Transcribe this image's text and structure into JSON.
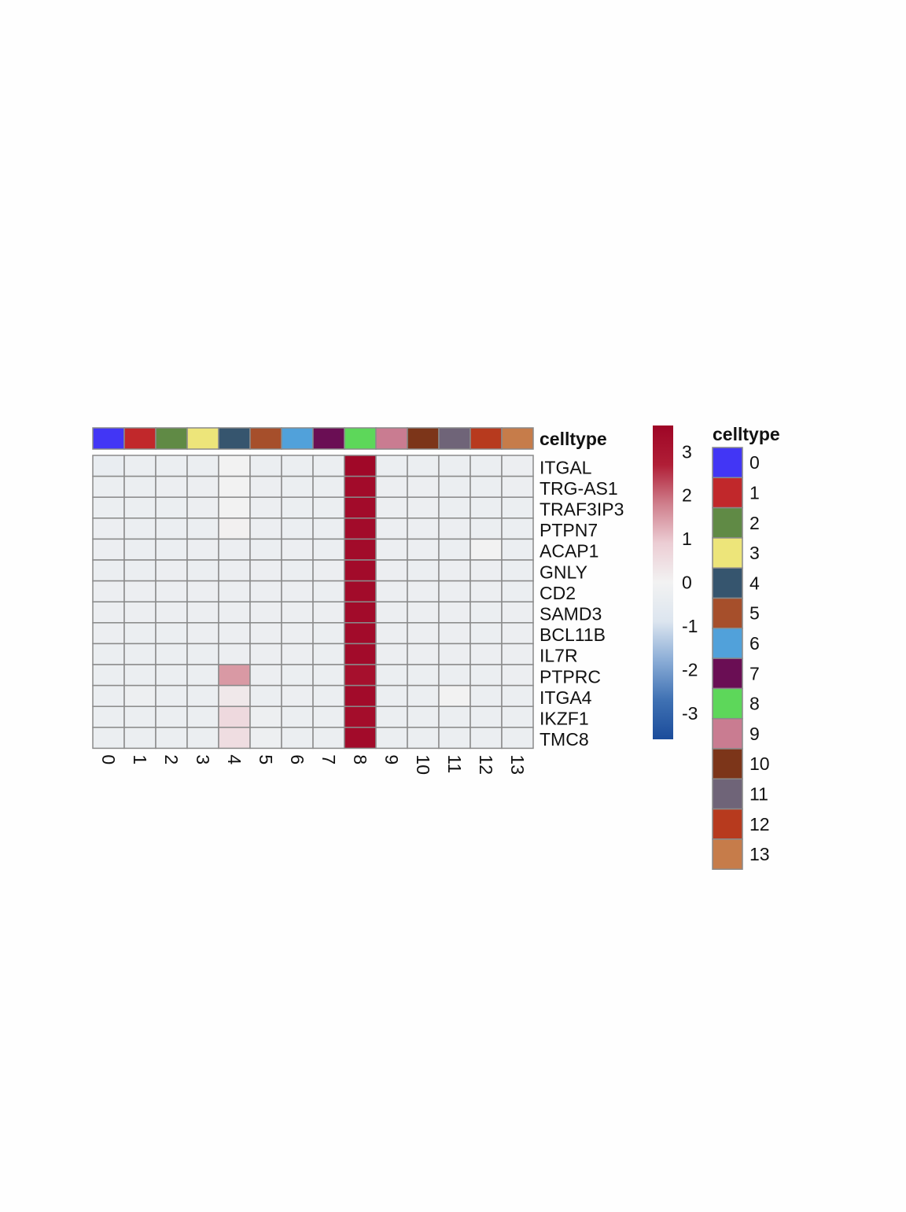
{
  "chart_data": {
    "type": "heatmap",
    "columns": [
      "0",
      "1",
      "2",
      "3",
      "4",
      "5",
      "6",
      "7",
      "8",
      "9",
      "10",
      "11",
      "12",
      "13"
    ],
    "rows": [
      "ITGAL",
      "TRG-AS1",
      "TRAF3IP3",
      "PTPN7",
      "ACAP1",
      "GNLY",
      "CD2",
      "SAMD3",
      "BCL11B",
      "IL7R",
      "PTPRC",
      "ITGA4",
      "IKZF1",
      "TMC8"
    ],
    "values": [
      [
        -0.35,
        -0.3,
        -0.3,
        -0.28,
        0.0,
        -0.3,
        -0.3,
        -0.3,
        3.5,
        -0.28,
        -0.28,
        -0.3,
        -0.28,
        -0.25
      ],
      [
        -0.3,
        -0.3,
        -0.25,
        -0.25,
        0.0,
        -0.25,
        -0.3,
        -0.3,
        3.4,
        -0.25,
        -0.25,
        -0.3,
        -0.3,
        -0.25
      ],
      [
        -0.3,
        -0.3,
        -0.3,
        -0.25,
        0.0,
        -0.25,
        -0.3,
        -0.3,
        3.4,
        -0.25,
        -0.25,
        -0.28,
        -0.28,
        -0.3
      ],
      [
        -0.25,
        -0.3,
        -0.3,
        -0.3,
        0.05,
        -0.25,
        -0.3,
        -0.3,
        3.4,
        -0.25,
        -0.25,
        -0.25,
        -0.3,
        -0.28
      ],
      [
        -0.25,
        -0.3,
        -0.3,
        -0.25,
        -0.25,
        -0.3,
        -0.25,
        -0.3,
        3.4,
        -0.25,
        -0.25,
        -0.3,
        0.0,
        -0.28
      ],
      [
        -0.3,
        -0.3,
        -0.25,
        -0.3,
        -0.25,
        -0.25,
        -0.3,
        -0.25,
        3.4,
        -0.25,
        -0.3,
        -0.25,
        -0.25,
        -0.28
      ],
      [
        -0.25,
        -0.25,
        -0.25,
        -0.25,
        -0.25,
        -0.25,
        -0.25,
        -0.3,
        3.4,
        -0.25,
        -0.25,
        -0.25,
        -0.25,
        -0.28
      ],
      [
        -0.25,
        -0.25,
        -0.25,
        -0.25,
        -0.25,
        -0.25,
        -0.25,
        -0.25,
        3.4,
        -0.25,
        -0.25,
        -0.25,
        -0.3,
        -0.25
      ],
      [
        -0.25,
        -0.3,
        -0.3,
        -0.25,
        -0.25,
        -0.25,
        -0.25,
        -0.3,
        3.4,
        -0.25,
        -0.25,
        -0.25,
        -0.3,
        -0.25
      ],
      [
        -0.3,
        -0.3,
        -0.3,
        -0.3,
        -0.25,
        -0.25,
        -0.25,
        -0.3,
        3.4,
        -0.25,
        -0.25,
        -0.25,
        -0.25,
        -0.25
      ],
      [
        -0.3,
        -0.3,
        -0.3,
        -0.3,
        1.5,
        -0.25,
        -0.3,
        -0.3,
        3.2,
        -0.3,
        -0.3,
        -0.3,
        -0.28,
        -0.25
      ],
      [
        -0.3,
        -0.2,
        -0.3,
        -0.3,
        0.25,
        -0.3,
        -0.25,
        -0.3,
        3.4,
        -0.3,
        -0.3,
        0.0,
        -0.28,
        -0.3
      ],
      [
        -0.3,
        -0.3,
        -0.3,
        -0.3,
        0.6,
        -0.2,
        -0.3,
        -0.3,
        3.3,
        -0.3,
        -0.3,
        -0.3,
        -0.28,
        -0.3
      ],
      [
        -0.3,
        -0.3,
        -0.3,
        -0.3,
        0.5,
        -0.2,
        -0.3,
        -0.3,
        3.4,
        -0.3,
        -0.3,
        -0.3,
        -0.28,
        -0.3
      ]
    ],
    "annotation_label": "celltype",
    "annotation_colors": [
      "#4236f5",
      "#c1282b",
      "#608a45",
      "#ede57a",
      "#36556e",
      "#a64f2b",
      "#51a1da",
      "#6a0e54",
      "#5dd75a",
      "#c97c91",
      "#7c3519",
      "#6f6478",
      "#b73a1e",
      "#c67c4a"
    ],
    "colorbar": {
      "range": [
        -3.6,
        3.6
      ],
      "ticks": [
        3,
        2,
        1,
        0,
        -1,
        -2,
        -3
      ],
      "tick_labels": [
        "3",
        "2",
        "1",
        "0",
        "-1",
        "-2",
        "-3"
      ],
      "colors": [
        "#1b4c9b",
        "#3f71b3",
        "#8aacd6",
        "#dce5ef",
        "#f2f2f2",
        "#eccdd4",
        "#cf7f8c",
        "#b01e36",
        "#9e0526"
      ]
    },
    "legend": {
      "title": "celltype",
      "labels": [
        "0",
        "1",
        "2",
        "3",
        "4",
        "5",
        "6",
        "7",
        "8",
        "9",
        "10",
        "11",
        "12",
        "13"
      ]
    }
  }
}
